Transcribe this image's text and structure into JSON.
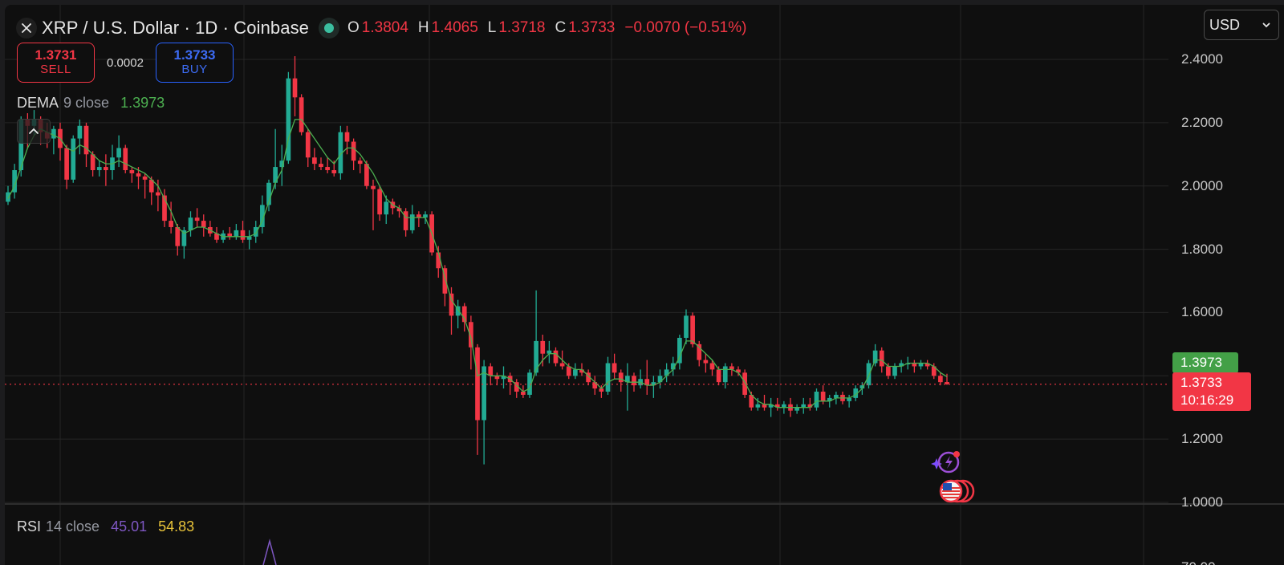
{
  "header": {
    "close_icon": "close-x-icon",
    "title": "XRP / U.S. Dollar · 1D · Coinbase",
    "market_status_icon": "market-open-dot-icon",
    "ohlc": {
      "o_label": "O",
      "o_value": "1.3804",
      "h_label": "H",
      "h_value": "1.4065",
      "l_label": "L",
      "l_value": "1.3718",
      "c_label": "C",
      "c_value": "1.3733",
      "change": "−0.0070 (−0.51%)"
    }
  },
  "trade": {
    "sell_price": "1.3731",
    "sell_label": "SELL",
    "spread": "0.0002",
    "buy_price": "1.3733",
    "buy_label": "BUY"
  },
  "indicators": {
    "dema": {
      "name": "DEMA",
      "params": "9 close",
      "value": "1.3973"
    },
    "rsi": {
      "name": "RSI",
      "params": "14 close",
      "value1": "45.01",
      "value2": "54.83"
    }
  },
  "currency_select": {
    "value": "USD"
  },
  "price_tags": {
    "dema": "1.3973",
    "last_price": "1.3733",
    "countdown": "10:16:29"
  },
  "colors": {
    "up": "#22ab94",
    "down": "#f23645",
    "dema_line": "#4caf50",
    "background": "#0f0f0f",
    "grid": "#262626",
    "rsi_line": "#7e57c2"
  },
  "chart_data": {
    "type": "candlestick",
    "title": "XRP / U.S. Dollar · 1D · Coinbase",
    "xlabel": "",
    "ylabel": "USD",
    "ylim": [
      1.0,
      2.4
    ],
    "y_ticks": [
      "2.4000",
      "2.2000",
      "2.0000",
      "1.8000",
      "1.6000",
      "1.4000",
      "1.2000",
      "1.0000"
    ],
    "y_tick_values": [
      2.4,
      2.2,
      2.0,
      1.8,
      1.6,
      1.4,
      1.2,
      1.0
    ],
    "grid": true,
    "last_price": 1.3733,
    "overlays": [
      {
        "name": "DEMA 9 close",
        "last": 1.3973
      }
    ],
    "candles": [
      [
        1.95,
        2.0,
        1.94,
        1.98
      ],
      [
        1.98,
        2.07,
        1.96,
        2.05
      ],
      [
        2.05,
        2.22,
        2.03,
        2.21
      ],
      [
        2.21,
        2.23,
        2.12,
        2.19
      ],
      [
        2.19,
        2.24,
        2.16,
        2.21
      ],
      [
        2.21,
        2.22,
        2.13,
        2.17
      ],
      [
        2.17,
        2.2,
        2.12,
        2.15
      ],
      [
        2.15,
        2.19,
        2.1,
        2.18
      ],
      [
        2.18,
        2.2,
        2.08,
        2.12
      ],
      [
        2.12,
        2.13,
        1.99,
        2.02
      ],
      [
        2.02,
        2.16,
        2.01,
        2.15
      ],
      [
        2.15,
        2.21,
        2.1,
        2.19
      ],
      [
        2.19,
        2.2,
        2.06,
        2.1
      ],
      [
        2.1,
        2.11,
        2.03,
        2.05
      ],
      [
        2.05,
        2.08,
        2.03,
        2.06
      ],
      [
        2.06,
        2.1,
        2.0,
        2.05
      ],
      [
        2.05,
        2.13,
        2.02,
        2.09
      ],
      [
        2.09,
        2.16,
        2.06,
        2.12
      ],
      [
        2.12,
        2.13,
        2.04,
        2.05
      ],
      [
        2.05,
        2.06,
        2.01,
        2.04
      ],
      [
        2.04,
        2.06,
        1.99,
        2.03
      ],
      [
        2.03,
        2.04,
        1.96,
        2.02
      ],
      [
        2.02,
        2.03,
        1.94,
        1.98
      ],
      [
        1.98,
        2.02,
        1.92,
        1.97
      ],
      [
        1.97,
        1.99,
        1.87,
        1.89
      ],
      [
        1.89,
        1.95,
        1.85,
        1.87
      ],
      [
        1.87,
        1.88,
        1.78,
        1.81
      ],
      [
        1.81,
        1.87,
        1.77,
        1.86
      ],
      [
        1.86,
        1.92,
        1.84,
        1.9
      ],
      [
        1.9,
        1.93,
        1.87,
        1.89
      ],
      [
        1.89,
        1.91,
        1.84,
        1.87
      ],
      [
        1.87,
        1.89,
        1.84,
        1.85
      ],
      [
        1.85,
        1.87,
        1.82,
        1.83
      ],
      [
        1.83,
        1.86,
        1.82,
        1.85
      ],
      [
        1.85,
        1.87,
        1.83,
        1.84
      ],
      [
        1.84,
        1.88,
        1.83,
        1.86
      ],
      [
        1.86,
        1.89,
        1.82,
        1.83
      ],
      [
        1.83,
        1.86,
        1.8,
        1.84
      ],
      [
        1.84,
        1.89,
        1.82,
        1.87
      ],
      [
        1.87,
        1.97,
        1.85,
        1.94
      ],
      [
        1.94,
        2.02,
        1.92,
        2.01
      ],
      [
        2.01,
        2.18,
        1.99,
        2.06
      ],
      [
        2.06,
        2.13,
        2.0,
        2.08
      ],
      [
        2.08,
        2.36,
        2.07,
        2.34
      ],
      [
        2.34,
        2.41,
        2.22,
        2.28
      ],
      [
        2.28,
        2.29,
        2.16,
        2.17
      ],
      [
        2.17,
        2.18,
        2.06,
        2.09
      ],
      [
        2.09,
        2.12,
        2.05,
        2.07
      ],
      [
        2.07,
        2.09,
        2.05,
        2.06
      ],
      [
        2.06,
        2.09,
        2.04,
        2.05
      ],
      [
        2.05,
        2.08,
        2.03,
        2.04
      ],
      [
        2.04,
        2.19,
        2.02,
        2.17
      ],
      [
        2.17,
        2.19,
        2.1,
        2.14
      ],
      [
        2.14,
        2.15,
        2.05,
        2.08
      ],
      [
        2.08,
        2.09,
        2.04,
        2.07
      ],
      [
        2.07,
        2.08,
        1.99,
        2.0
      ],
      [
        2.0,
        2.02,
        1.86,
        1.99
      ],
      [
        1.99,
        2.0,
        1.89,
        1.91
      ],
      [
        1.91,
        1.97,
        1.88,
        1.95
      ],
      [
        1.95,
        1.96,
        1.91,
        1.93
      ],
      [
        1.93,
        1.94,
        1.9,
        1.92
      ],
      [
        1.92,
        1.93,
        1.84,
        1.86
      ],
      [
        1.86,
        1.94,
        1.85,
        1.91
      ],
      [
        1.91,
        1.92,
        1.87,
        1.9
      ],
      [
        1.9,
        1.92,
        1.88,
        1.91
      ],
      [
        1.91,
        1.92,
        1.78,
        1.79
      ],
      [
        1.79,
        1.81,
        1.71,
        1.74
      ],
      [
        1.74,
        1.75,
        1.62,
        1.66
      ],
      [
        1.66,
        1.68,
        1.53,
        1.59
      ],
      [
        1.59,
        1.64,
        1.55,
        1.62
      ],
      [
        1.62,
        1.63,
        1.54,
        1.57
      ],
      [
        1.57,
        1.59,
        1.42,
        1.49
      ],
      [
        1.49,
        1.5,
        1.15,
        1.26
      ],
      [
        1.26,
        1.45,
        1.12,
        1.43
      ],
      [
        1.43,
        1.44,
        1.37,
        1.4
      ],
      [
        1.4,
        1.41,
        1.37,
        1.39
      ],
      [
        1.39,
        1.43,
        1.36,
        1.4
      ],
      [
        1.4,
        1.41,
        1.34,
        1.38
      ],
      [
        1.38,
        1.39,
        1.33,
        1.35
      ],
      [
        1.35,
        1.37,
        1.33,
        1.34
      ],
      [
        1.34,
        1.42,
        1.33,
        1.41
      ],
      [
        1.41,
        1.67,
        1.4,
        1.51
      ],
      [
        1.51,
        1.53,
        1.43,
        1.47
      ],
      [
        1.47,
        1.51,
        1.44,
        1.48
      ],
      [
        1.48,
        1.49,
        1.43,
        1.44
      ],
      [
        1.44,
        1.48,
        1.42,
        1.43
      ],
      [
        1.43,
        1.44,
        1.39,
        1.4
      ],
      [
        1.4,
        1.44,
        1.39,
        1.42
      ],
      [
        1.42,
        1.44,
        1.4,
        1.41
      ],
      [
        1.41,
        1.42,
        1.37,
        1.38
      ],
      [
        1.38,
        1.4,
        1.34,
        1.36
      ],
      [
        1.36,
        1.37,
        1.33,
        1.35
      ],
      [
        1.35,
        1.46,
        1.34,
        1.44
      ],
      [
        1.44,
        1.47,
        1.39,
        1.41
      ],
      [
        1.41,
        1.42,
        1.35,
        1.38
      ],
      [
        1.38,
        1.44,
        1.29,
        1.4
      ],
      [
        1.4,
        1.41,
        1.35,
        1.37
      ],
      [
        1.37,
        1.42,
        1.36,
        1.39
      ],
      [
        1.39,
        1.45,
        1.34,
        1.37
      ],
      [
        1.37,
        1.4,
        1.33,
        1.38
      ],
      [
        1.38,
        1.42,
        1.36,
        1.4
      ],
      [
        1.4,
        1.44,
        1.38,
        1.42
      ],
      [
        1.42,
        1.46,
        1.4,
        1.44
      ],
      [
        1.44,
        1.53,
        1.42,
        1.52
      ],
      [
        1.52,
        1.61,
        1.5,
        1.59
      ],
      [
        1.59,
        1.6,
        1.49,
        1.5
      ],
      [
        1.5,
        1.51,
        1.43,
        1.45
      ],
      [
        1.45,
        1.47,
        1.41,
        1.44
      ],
      [
        1.44,
        1.45,
        1.4,
        1.42
      ],
      [
        1.42,
        1.43,
        1.37,
        1.38
      ],
      [
        1.38,
        1.44,
        1.36,
        1.43
      ],
      [
        1.43,
        1.44,
        1.4,
        1.42
      ],
      [
        1.42,
        1.43,
        1.4,
        1.41
      ],
      [
        1.41,
        1.42,
        1.33,
        1.34
      ],
      [
        1.34,
        1.35,
        1.29,
        1.3
      ],
      [
        1.3,
        1.33,
        1.29,
        1.31
      ],
      [
        1.31,
        1.34,
        1.29,
        1.3
      ],
      [
        1.3,
        1.33,
        1.27,
        1.31
      ],
      [
        1.31,
        1.33,
        1.29,
        1.3
      ],
      [
        1.3,
        1.32,
        1.28,
        1.31
      ],
      [
        1.31,
        1.33,
        1.27,
        1.29
      ],
      [
        1.29,
        1.31,
        1.28,
        1.3
      ],
      [
        1.3,
        1.33,
        1.28,
        1.31
      ],
      [
        1.31,
        1.33,
        1.29,
        1.3
      ],
      [
        1.3,
        1.36,
        1.29,
        1.35
      ],
      [
        1.35,
        1.37,
        1.31,
        1.32
      ],
      [
        1.32,
        1.34,
        1.3,
        1.33
      ],
      [
        1.33,
        1.35,
        1.31,
        1.34
      ],
      [
        1.34,
        1.35,
        1.31,
        1.32
      ],
      [
        1.32,
        1.34,
        1.3,
        1.33
      ],
      [
        1.33,
        1.37,
        1.32,
        1.36
      ],
      [
        1.36,
        1.38,
        1.34,
        1.37
      ],
      [
        1.37,
        1.45,
        1.36,
        1.44
      ],
      [
        1.44,
        1.5,
        1.43,
        1.48
      ],
      [
        1.48,
        1.49,
        1.41,
        1.43
      ],
      [
        1.43,
        1.44,
        1.39,
        1.4
      ],
      [
        1.4,
        1.44,
        1.39,
        1.43
      ],
      [
        1.43,
        1.45,
        1.41,
        1.44
      ],
      [
        1.44,
        1.46,
        1.42,
        1.44
      ],
      [
        1.44,
        1.45,
        1.41,
        1.43
      ],
      [
        1.43,
        1.45,
        1.42,
        1.44
      ],
      [
        1.44,
        1.45,
        1.42,
        1.43
      ],
      [
        1.43,
        1.44,
        1.39,
        1.4
      ],
      [
        1.4,
        1.41,
        1.37,
        1.38
      ],
      [
        1.3804,
        1.4065,
        1.3718,
        1.3733
      ]
    ],
    "dema": [
      1.96,
      2.0,
      2.06,
      2.12,
      2.16,
      2.18,
      2.17,
      2.16,
      2.15,
      2.12,
      2.11,
      2.13,
      2.12,
      2.1,
      2.08,
      2.07,
      2.07,
      2.08,
      2.07,
      2.06,
      2.05,
      2.04,
      2.02,
      2.0,
      1.96,
      1.92,
      1.87,
      1.85,
      1.86,
      1.87,
      1.87,
      1.86,
      1.85,
      1.84,
      1.84,
      1.84,
      1.84,
      1.84,
      1.85,
      1.89,
      1.95,
      2.01,
      2.05,
      2.15,
      2.21,
      2.21,
      2.18,
      2.15,
      2.12,
      2.09,
      2.07,
      2.1,
      2.12,
      2.12,
      2.1,
      2.07,
      2.04,
      2.0,
      1.96,
      1.94,
      1.93,
      1.9,
      1.9,
      1.9,
      1.9,
      1.85,
      1.79,
      1.71,
      1.64,
      1.61,
      1.58,
      1.52,
      1.4,
      1.41,
      1.4,
      1.4,
      1.4,
      1.39,
      1.37,
      1.35,
      1.36,
      1.42,
      1.45,
      1.47,
      1.47,
      1.45,
      1.43,
      1.42,
      1.42,
      1.4,
      1.38,
      1.36,
      1.38,
      1.39,
      1.39,
      1.38,
      1.38,
      1.38,
      1.37,
      1.37,
      1.38,
      1.4,
      1.42,
      1.46,
      1.51,
      1.51,
      1.49,
      1.47,
      1.45,
      1.42,
      1.42,
      1.42,
      1.41,
      1.38,
      1.34,
      1.32,
      1.31,
      1.31,
      1.3,
      1.3,
      1.3,
      1.3,
      1.3,
      1.3,
      1.32,
      1.32,
      1.32,
      1.33,
      1.33,
      1.33,
      1.34,
      1.36,
      1.4,
      1.45,
      1.45,
      1.43,
      1.43,
      1.43,
      1.44,
      1.44,
      1.44,
      1.44,
      1.43,
      1.41,
      1.3973
    ],
    "rsi_visible": {
      "line": "partial peak visible at bottom edge"
    }
  }
}
